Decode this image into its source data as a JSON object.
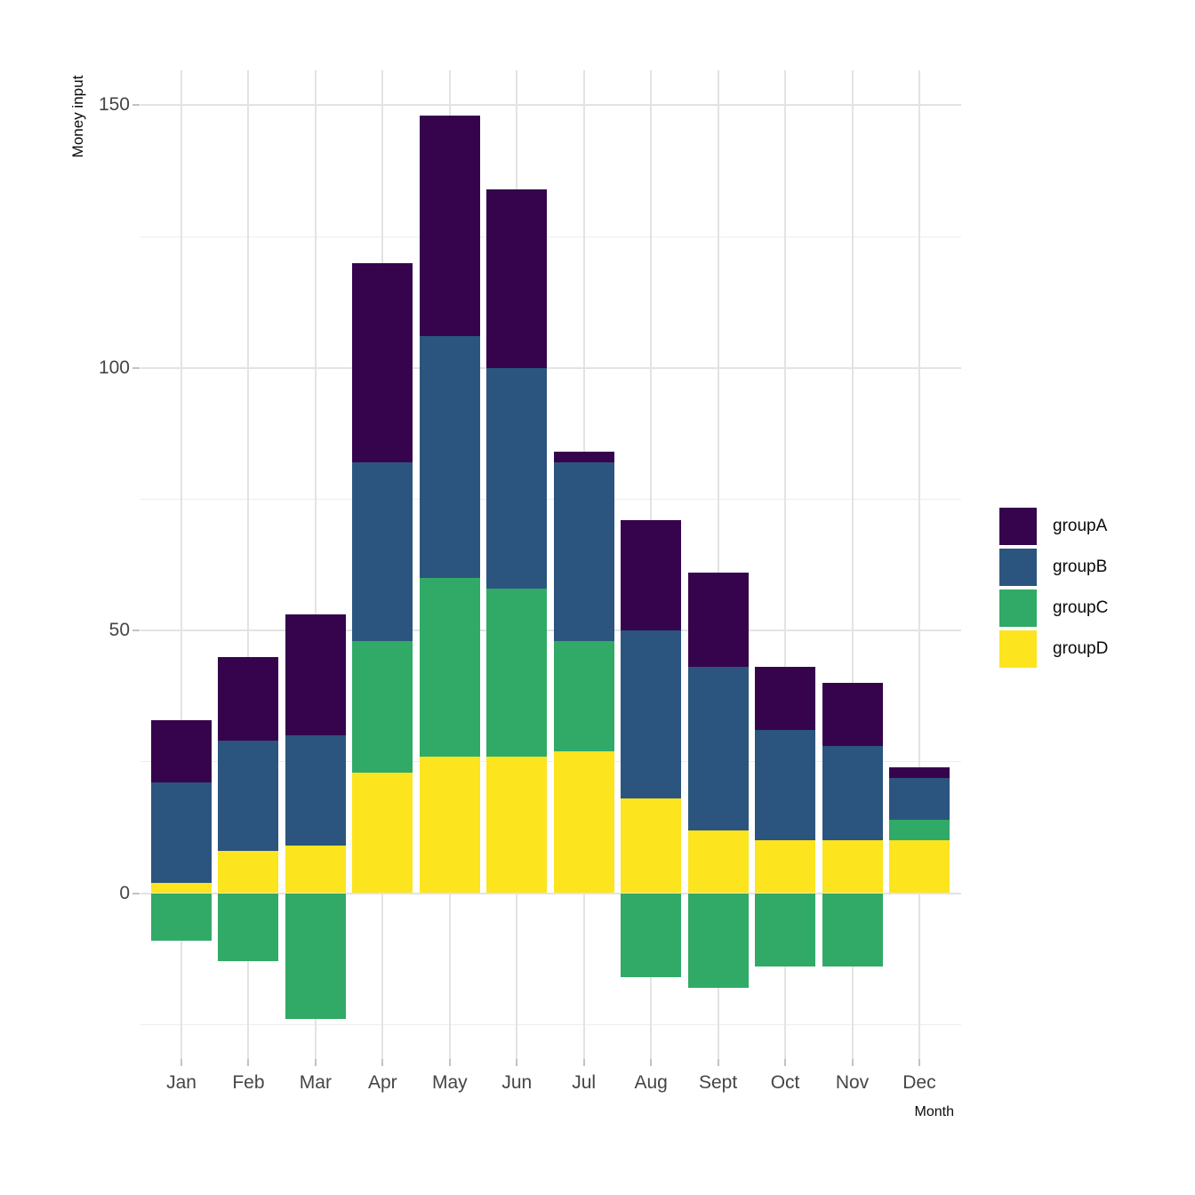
{
  "figure": {
    "background_color": "#ffffff",
    "y_axis": {
      "title": "Money input",
      "tick_labels": [
        "0",
        "50",
        "100",
        "150"
      ]
    },
    "x_axis": {
      "title": "Month",
      "tick_labels": [
        "Jan",
        "Feb",
        "Mar",
        "Apr",
        "May",
        "Jun",
        "Jul",
        "Aug",
        "Sept",
        "Oct",
        "Nov",
        "Dec"
      ]
    },
    "legend": {
      "position": "right",
      "labels": [
        "groupA",
        "groupB",
        "groupC",
        "groupD"
      ]
    }
  },
  "chart_data": {
    "type": "bar",
    "stacked": true,
    "orientation": "vertical",
    "title": "",
    "xlabel": "Month",
    "ylabel": "Money input",
    "categories": [
      "Jan",
      "Feb",
      "Mar",
      "Apr",
      "May",
      "Jun",
      "Jul",
      "Aug",
      "Sept",
      "Oct",
      "Nov",
      "Dec"
    ],
    "series": [
      {
        "name": "groupA",
        "color": "#36044d",
        "values": [
          12,
          16,
          23,
          38,
          42,
          34,
          2,
          21,
          18,
          12,
          12,
          2
        ]
      },
      {
        "name": "groupB",
        "color": "#2b557e",
        "values": [
          19,
          21,
          21,
          34,
          46,
          42,
          34,
          32,
          31,
          21,
          18,
          8
        ]
      },
      {
        "name": "groupC",
        "color": "#31aa67",
        "values": [
          -9,
          -13,
          -24,
          25,
          34,
          32,
          21,
          -16,
          -18,
          -14,
          -14,
          4
        ]
      },
      {
        "name": "groupD",
        "color": "#fce41f",
        "values": [
          2,
          8,
          9,
          23,
          26,
          26,
          27,
          18,
          12,
          10,
          10,
          10
        ]
      }
    ],
    "stack_order_bottom_to_top": [
      "groupD",
      "groupC",
      "groupB",
      "groupA"
    ],
    "stack_totals_positive": [
      33,
      45,
      53,
      120,
      148,
      134,
      84,
      71,
      61,
      43,
      40,
      24
    ],
    "ylim": [
      -31.6,
      156.7
    ],
    "yticks_major": [
      0,
      50,
      100,
      150
    ],
    "yticks_minor": [
      -25,
      25,
      75,
      125
    ],
    "grid": true,
    "legend_position": "right"
  }
}
